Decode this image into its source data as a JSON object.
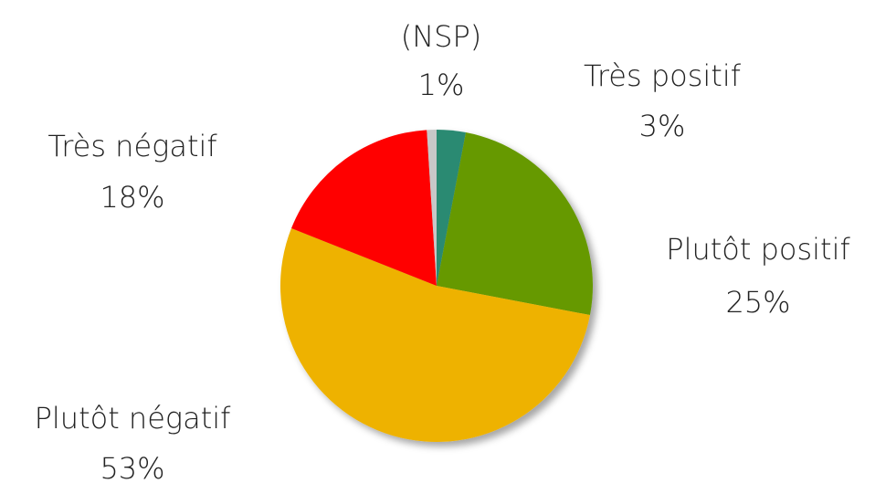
{
  "chart_data": {
    "type": "pie",
    "categories": [
      "Très positif",
      "Plutôt positif",
      "Plutôt négatif",
      "Très négatif",
      "(NSP)"
    ],
    "values": [
      3,
      25,
      53,
      18,
      1
    ],
    "value_labels": [
      "3%",
      "25%",
      "53%",
      "18%",
      "1%"
    ],
    "colors": [
      "#2a8a72",
      "#669900",
      "#eeb200",
      "#ff0000",
      "#c8c8c8"
    ]
  }
}
